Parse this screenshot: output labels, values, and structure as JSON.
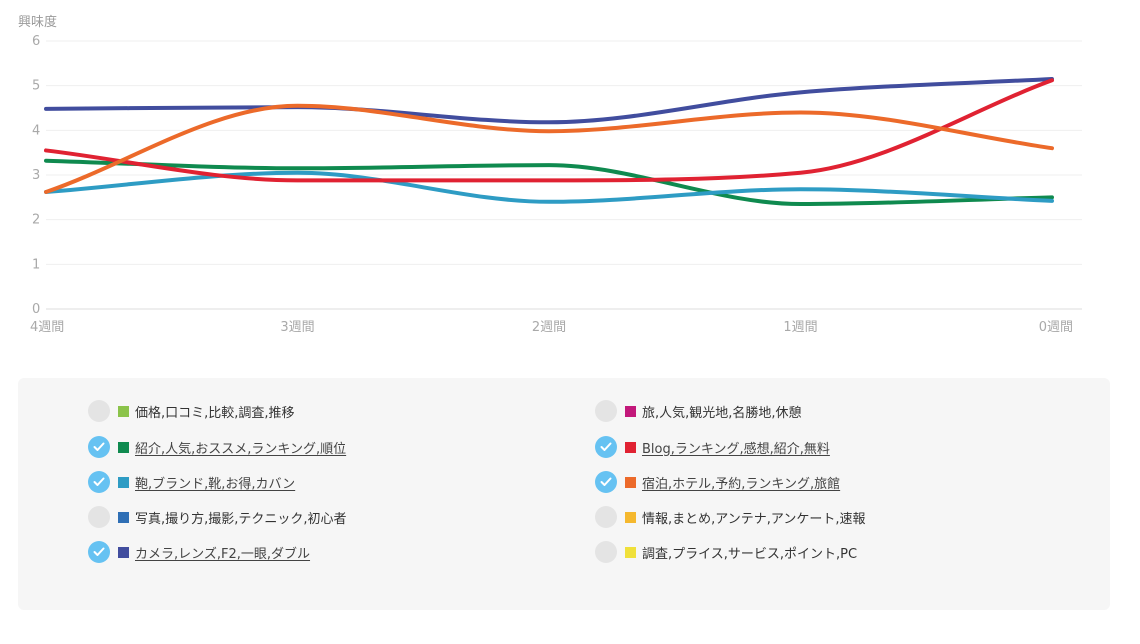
{
  "chart_data": {
    "type": "line",
    "ylabel": "興味度",
    "ylim": [
      0,
      6
    ],
    "yticks": [
      0,
      1,
      2,
      3,
      4,
      5,
      6
    ],
    "categories": [
      "4週間",
      "3週間",
      "2週間",
      "1週間",
      "0週間"
    ],
    "grid": true,
    "series": [
      {
        "name": "紹介,人気,おススメ,ランキング,順位",
        "color": "#0f8a4f",
        "values": [
          3.32,
          3.15,
          3.22,
          2.35,
          2.5
        ]
      },
      {
        "name": "鞄,ブランド,靴,お得,カバン",
        "color": "#2e9cc4",
        "values": [
          2.62,
          3.05,
          2.4,
          2.68,
          2.42
        ]
      },
      {
        "name": "カメラ,レンズ,F2,一眼,ダブル",
        "color": "#414d9e",
        "values": [
          4.48,
          4.52,
          4.18,
          4.85,
          5.15
        ]
      },
      {
        "name": "Blog,ランキング,感想,紹介,無料",
        "color": "#e02232",
        "values": [
          3.55,
          2.88,
          2.88,
          3.05,
          5.12
        ]
      },
      {
        "name": "宿泊,ホテル,予約,ランキング,旅館",
        "color": "#ec6a2a",
        "values": [
          2.62,
          4.55,
          3.98,
          4.4,
          3.6
        ]
      }
    ]
  },
  "legend": {
    "left": [
      {
        "label": "価格,口コミ,比較,調査,推移",
        "color": "#8bc34a",
        "checked": false
      },
      {
        "label": "紹介,人気,おススメ,ランキング,順位",
        "color": "#0f8a4f",
        "checked": true
      },
      {
        "label": "鞄,ブランド,靴,お得,カバン",
        "color": "#2e9cc4",
        "checked": true
      },
      {
        "label": "写真,撮り方,撮影,テクニック,初心者",
        "color": "#2f6fb5",
        "checked": false
      },
      {
        "label": "カメラ,レンズ,F2,一眼,ダブル",
        "color": "#414d9e",
        "checked": true
      }
    ],
    "right": [
      {
        "label": "旅,人気,観光地,名勝地,休憩",
        "color": "#c2187a",
        "checked": false
      },
      {
        "label": "Blog,ランキング,感想,紹介,無料",
        "color": "#e02232",
        "checked": true
      },
      {
        "label": "宿泊,ホテル,予約,ランキング,旅館",
        "color": "#ec6a2a",
        "checked": true
      },
      {
        "label": "情報,まとめ,アンテナ,アンケート,速報",
        "color": "#f5b82e",
        "checked": false
      },
      {
        "label": "調査,プライス,サービス,ポイント,PC",
        "color": "#f0e03a",
        "checked": false
      }
    ]
  }
}
